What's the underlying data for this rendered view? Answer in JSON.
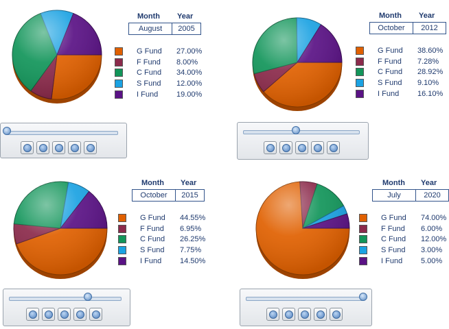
{
  "colors": {
    "G Fund": "#e06000",
    "F Fund": "#8b2a4b",
    "C Fund": "#12955a",
    "S Fund": "#1ba2e2",
    "I Fund": "#5a1285"
  },
  "chart_data": [
    {
      "type": "pie",
      "month_header": "Month",
      "year_header": "Year",
      "month": "August",
      "year": "2005",
      "slider_fraction": 0.0,
      "slices": [
        {
          "name": "G Fund",
          "value": 27.0,
          "label": "27.00%"
        },
        {
          "name": "F Fund",
          "value": 8.0,
          "label": "8.00%"
        },
        {
          "name": "C Fund",
          "value": 34.0,
          "label": "34.00%"
        },
        {
          "name": "S Fund",
          "value": 12.0,
          "label": "12.00%"
        },
        {
          "name": "I Fund",
          "value": 19.0,
          "label": "19.00%"
        }
      ]
    },
    {
      "type": "pie",
      "month_header": "Month",
      "year_header": "Year",
      "month": "October",
      "year": "2012",
      "slider_fraction": 0.45,
      "slices": [
        {
          "name": "G Fund",
          "value": 38.6,
          "label": "38.60%"
        },
        {
          "name": "F Fund",
          "value": 7.28,
          "label": "7.28%"
        },
        {
          "name": "C Fund",
          "value": 28.92,
          "label": "28.92%"
        },
        {
          "name": "S Fund",
          "value": 9.1,
          "label": "9.10%"
        },
        {
          "name": "I Fund",
          "value": 16.1,
          "label": "16.10%"
        }
      ]
    },
    {
      "type": "pie",
      "month_header": "Month",
      "year_header": "Year",
      "month": "October",
      "year": "2015",
      "slider_fraction": 0.7,
      "slices": [
        {
          "name": "G Fund",
          "value": 44.55,
          "label": "44.55%"
        },
        {
          "name": "F Fund",
          "value": 6.95,
          "label": "6.95%"
        },
        {
          "name": "C Fund",
          "value": 26.25,
          "label": "26.25%"
        },
        {
          "name": "S Fund",
          "value": 7.75,
          "label": "7.75%"
        },
        {
          "name": "I Fund",
          "value": 14.5,
          "label": "14.50%"
        }
      ]
    },
    {
      "type": "pie",
      "month_header": "Month",
      "year_header": "Year",
      "month": "July",
      "year": "2020",
      "slider_fraction": 1.0,
      "slices": [
        {
          "name": "G Fund",
          "value": 74.0,
          "label": "74.00%"
        },
        {
          "name": "F Fund",
          "value": 6.0,
          "label": "6.00%"
        },
        {
          "name": "C Fund",
          "value": 12.0,
          "label": "12.00%"
        },
        {
          "name": "S Fund",
          "value": 3.0,
          "label": "3.00%"
        },
        {
          "name": "I Fund",
          "value": 5.0,
          "label": "5.00%"
        }
      ]
    }
  ],
  "player_buttons": [
    "first-button",
    "rewind-button",
    "play-button",
    "fast-forward-button",
    "last-button"
  ]
}
